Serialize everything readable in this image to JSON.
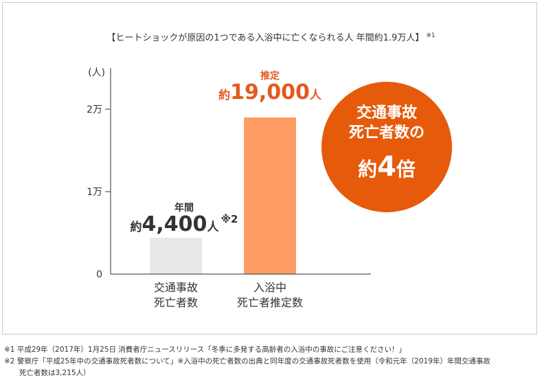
{
  "title": "【ヒートショックが原因の1つである入浴中に亡くなられる人 年間約1.9万人】",
  "title_note": "※1",
  "chart_data": {
    "type": "bar",
    "categories": [
      [
        "交通事故",
        "死亡者数"
      ],
      [
        "入浴中",
        "死亡者推定数"
      ]
    ],
    "values": [
      4400,
      19000
    ],
    "ylim": [
      0,
      25000
    ],
    "yticks": [
      {
        "value": 0,
        "label": "0"
      },
      {
        "value": 10000,
        "label": "1万"
      },
      {
        "value": 20000,
        "label": "2万"
      }
    ],
    "yunit": "(人)",
    "grid": false,
    "colors": [
      "#e8e8e8",
      "#ff9d66"
    ],
    "axis_color": "#555555"
  },
  "annotations": {
    "a": {
      "line1": "年間",
      "prefix": "約",
      "number": "4,400",
      "unit": "人",
      "note": "※2"
    },
    "b": {
      "line1": "推定",
      "prefix": "約",
      "number": "19,000",
      "unit": "人"
    }
  },
  "badge": {
    "line1": "交通事故",
    "line2": "死亡者数の",
    "prefix": "約",
    "number": "4",
    "suffix": "倍",
    "color": "#e55b0b"
  },
  "footnotes": {
    "n1": "※1 平成29年（2017年）1月25日 消費者庁ニュースリリース「冬季に多発する高齢者の入浴中の事故にご注意ください！」",
    "n2": "※2 警察庁「平成25年中の交通事故死者数について」※入浴中の死亡者数の出典と同年度の交通事故死者数を使用（令和元年（2019年）年間交通事故",
    "n2_cont": "死亡者数は3,215人）"
  }
}
